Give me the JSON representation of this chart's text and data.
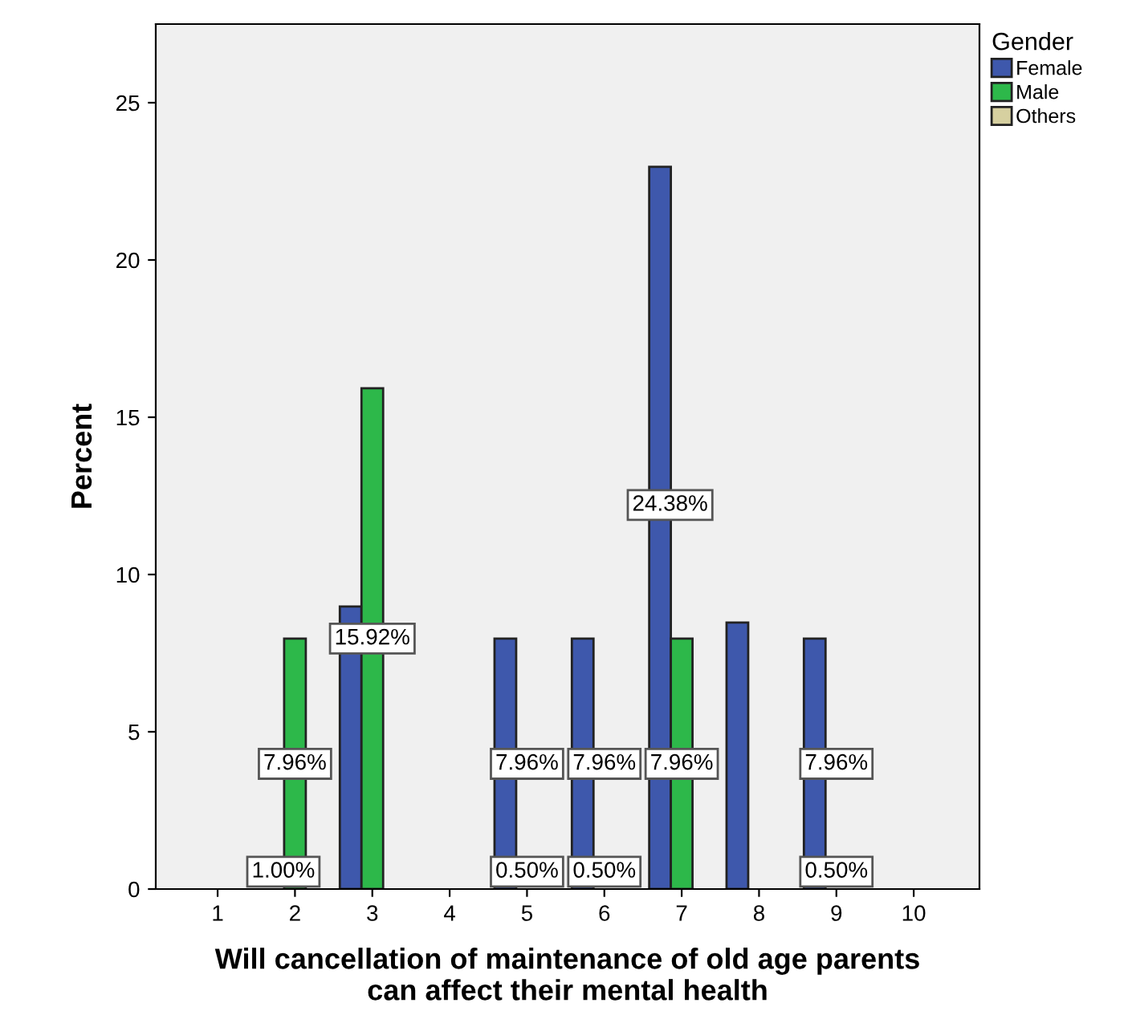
{
  "chart_data": {
    "type": "bar",
    "xlabel": "Will cancellation of maintenance of old age parents\ncan affect their mental health",
    "ylabel": "Percent",
    "legend_title": "Gender",
    "categories": [
      "1",
      "2",
      "3",
      "4",
      "5",
      "6",
      "7",
      "8",
      "9",
      "10"
    ],
    "series": [
      {
        "name": "Female",
        "color": "#3e58ac",
        "values": [
          null,
          null,
          8.98,
          null,
          7.96,
          7.96,
          22.96,
          8.47,
          7.96,
          null
        ],
        "value_labels": [
          null,
          null,
          null,
          null,
          "7.96%",
          "7.96%",
          null,
          null,
          "7.96%",
          null
        ]
      },
      {
        "name": "Male",
        "color": "#2db84a",
        "values": [
          null,
          7.96,
          15.92,
          null,
          null,
          null,
          7.96,
          null,
          null,
          null
        ],
        "value_labels": [
          null,
          "7.96%",
          "15.92%",
          null,
          null,
          null,
          "7.96%",
          null,
          null,
          null
        ]
      },
      {
        "name": "Others",
        "color": "#d6d0a0",
        "values": [
          null,
          null,
          null,
          null,
          null,
          null,
          null,
          null,
          null,
          null
        ]
      }
    ],
    "annotations": [
      "24.38%",
      "1.00%",
      "0.50%",
      "0.50%",
      "0.50%"
    ],
    "ylim": [
      0,
      27.5
    ],
    "yticks": [
      0,
      5,
      10,
      15,
      20,
      25
    ],
    "grid": false,
    "legend": "top right"
  }
}
